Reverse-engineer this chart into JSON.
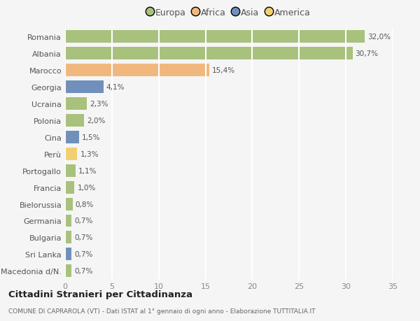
{
  "countries": [
    "Romania",
    "Albania",
    "Marocco",
    "Georgia",
    "Ucraina",
    "Polonia",
    "Cina",
    "Perù",
    "Portogallo",
    "Francia",
    "Bielorussia",
    "Germania",
    "Bulgaria",
    "Sri Lanka",
    "Macedonia d/N."
  ],
  "values": [
    32.0,
    30.7,
    15.4,
    4.1,
    2.3,
    2.0,
    1.5,
    1.3,
    1.1,
    1.0,
    0.8,
    0.7,
    0.7,
    0.7,
    0.7
  ],
  "labels": [
    "32,0%",
    "30,7%",
    "15,4%",
    "4,1%",
    "2,3%",
    "2,0%",
    "1,5%",
    "1,3%",
    "1,1%",
    "1,0%",
    "0,8%",
    "0,7%",
    "0,7%",
    "0,7%",
    "0,7%"
  ],
  "continents": [
    "Europa",
    "Europa",
    "Africa",
    "Asia",
    "Europa",
    "Europa",
    "Asia",
    "America",
    "Europa",
    "Europa",
    "Europa",
    "Europa",
    "Europa",
    "Asia",
    "Europa"
  ],
  "colors": {
    "Europa": "#a8c17c",
    "Africa": "#f0b87e",
    "Asia": "#7090bb",
    "America": "#f0d070"
  },
  "legend_order": [
    "Europa",
    "Africa",
    "Asia",
    "America"
  ],
  "title": "Cittadini Stranieri per Cittadinanza",
  "subtitle": "COMUNE DI CAPRAROLA (VT) - Dati ISTAT al 1° gennaio di ogni anno - Elaborazione TUTTITALIA.IT",
  "xlim": [
    0,
    35
  ],
  "xticks": [
    0,
    5,
    10,
    15,
    20,
    25,
    30,
    35
  ],
  "bg_color": "#f5f5f5",
  "grid_color": "#ffffff",
  "bar_height": 0.75
}
